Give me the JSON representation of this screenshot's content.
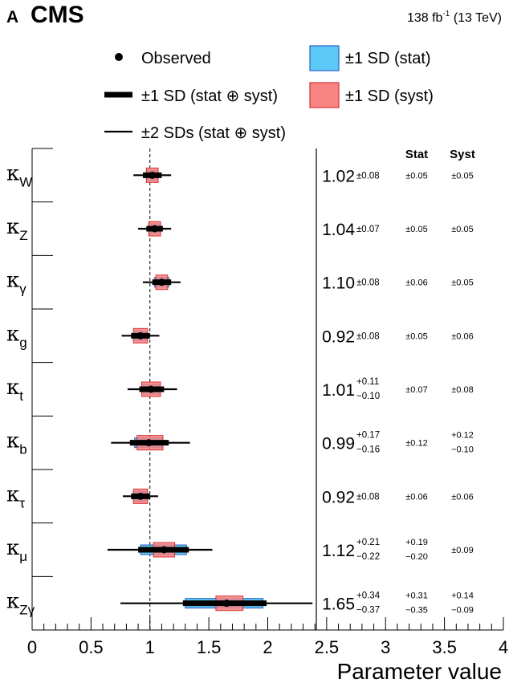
{
  "header": {
    "panel_letter": "A",
    "experiment": "CMS",
    "lumi": "138 fb",
    "lumi_exp": "-1",
    "energy": "(13 TeV)"
  },
  "legend": {
    "observed": "Observed",
    "one_sd_total": "±1 SD (stat ⊕ syst)",
    "two_sd_total": "±2 SDs (stat ⊕ syst)",
    "one_sd_stat": "±1 SD (stat)",
    "one_sd_syst": "±1 SD (syst)"
  },
  "columns": {
    "stat": "Stat",
    "syst": "Syst"
  },
  "colors": {
    "stat_fill": "#5bc8f5",
    "stat_edge": "#2a60c8",
    "syst_fill": "#f78383",
    "syst_edge": "#d83030",
    "marker": "#000000"
  },
  "chart_data": {
    "type": "scatter",
    "xlabel": "Parameter value",
    "xlim": [
      0,
      4
    ],
    "xticks": [
      "0",
      "0.5",
      "1",
      "1.5",
      "2",
      "2.5",
      "3",
      "3.5",
      "4"
    ],
    "reference_line": 1,
    "parameters": [
      {
        "sym": "κ",
        "sub": "W",
        "value": 1.02,
        "value_text": "1.02",
        "tot_single": "±0.08",
        "tot_up": "",
        "tot_dn": "",
        "stat_single": "±0.05",
        "stat_up": "",
        "stat_dn": "",
        "syst_single": "±0.05",
        "syst_up": "",
        "syst_dn": "",
        "tot1": [
          0.08,
          0.08
        ],
        "tot2": [
          0.16,
          0.16
        ],
        "stat": [
          0.05,
          0.05
        ],
        "syst": [
          0.05,
          0.05
        ]
      },
      {
        "sym": "κ",
        "sub": "Z",
        "value": 1.04,
        "value_text": "1.04",
        "tot_single": "±0.07",
        "tot_up": "",
        "tot_dn": "",
        "stat_single": "±0.05",
        "stat_up": "",
        "stat_dn": "",
        "syst_single": "±0.05",
        "syst_up": "",
        "syst_dn": "",
        "tot1": [
          0.07,
          0.07
        ],
        "tot2": [
          0.14,
          0.14
        ],
        "stat": [
          0.05,
          0.05
        ],
        "syst": [
          0.05,
          0.05
        ]
      },
      {
        "sym": "κ",
        "sub": "γ",
        "value": 1.1,
        "value_text": "1.10",
        "tot_single": "±0.08",
        "tot_up": "",
        "tot_dn": "",
        "stat_single": "±0.06",
        "stat_up": "",
        "stat_dn": "",
        "syst_single": "±0.05",
        "syst_up": "",
        "syst_dn": "",
        "tot1": [
          0.08,
          0.08
        ],
        "tot2": [
          0.16,
          0.16
        ],
        "stat": [
          0.06,
          0.06
        ],
        "syst": [
          0.05,
          0.05
        ]
      },
      {
        "sym": "κ",
        "sub": "g",
        "value": 0.92,
        "value_text": "0.92",
        "tot_single": "±0.08",
        "tot_up": "",
        "tot_dn": "",
        "stat_single": "±0.05",
        "stat_up": "",
        "stat_dn": "",
        "syst_single": "±0.06",
        "syst_up": "",
        "syst_dn": "",
        "tot1": [
          0.08,
          0.08
        ],
        "tot2": [
          0.16,
          0.16
        ],
        "stat": [
          0.05,
          0.05
        ],
        "syst": [
          0.06,
          0.06
        ]
      },
      {
        "sym": "κ",
        "sub": "t",
        "value": 1.01,
        "value_text": "1.01",
        "tot_single": "",
        "tot_up": "+0.11",
        "tot_dn": "−0.10",
        "stat_single": "±0.07",
        "stat_up": "",
        "stat_dn": "",
        "syst_single": "±0.08",
        "syst_up": "",
        "syst_dn": "",
        "tot1": [
          0.1,
          0.11
        ],
        "tot2": [
          0.2,
          0.22
        ],
        "stat": [
          0.07,
          0.07
        ],
        "syst": [
          0.08,
          0.08
        ]
      },
      {
        "sym": "κ",
        "sub": "b",
        "value": 0.99,
        "value_text": "0.99",
        "tot_single": "",
        "tot_up": "+0.17",
        "tot_dn": "−0.16",
        "stat_single": "±0.12",
        "stat_up": "",
        "stat_dn": "",
        "syst_single": "",
        "syst_up": "+0.12",
        "syst_dn": "−0.10",
        "tot1": [
          0.16,
          0.17
        ],
        "tot2": [
          0.32,
          0.35
        ],
        "stat": [
          0.12,
          0.12
        ],
        "syst": [
          0.1,
          0.12
        ]
      },
      {
        "sym": "κ",
        "sub": "τ",
        "value": 0.92,
        "value_text": "0.92",
        "tot_single": "±0.08",
        "tot_up": "",
        "tot_dn": "",
        "stat_single": "±0.06",
        "stat_up": "",
        "stat_dn": "",
        "syst_single": "±0.06",
        "syst_up": "",
        "syst_dn": "",
        "tot1": [
          0.08,
          0.08
        ],
        "tot2": [
          0.15,
          0.15
        ],
        "stat": [
          0.06,
          0.06
        ],
        "syst": [
          0.06,
          0.06
        ]
      },
      {
        "sym": "κ",
        "sub": "μ",
        "value": 1.12,
        "value_text": "1.12",
        "tot_single": "",
        "tot_up": "+0.21",
        "tot_dn": "−0.22",
        "stat_single": "",
        "stat_up": "+0.19",
        "stat_dn": "−0.20",
        "syst_single": "±0.09",
        "syst_up": "",
        "syst_dn": "",
        "tot1": [
          0.22,
          0.21
        ],
        "tot2": [
          0.48,
          0.41
        ],
        "stat": [
          0.2,
          0.19
        ],
        "syst": [
          0.09,
          0.09
        ]
      },
      {
        "sym": "κ",
        "sub": "Zγ",
        "value": 1.65,
        "value_text": "1.65",
        "tot_single": "",
        "tot_up": "+0.34",
        "tot_dn": "−0.37",
        "stat_single": "",
        "stat_up": "+0.31",
        "stat_dn": "−0.35",
        "syst_single": "",
        "syst_up": "+0.14",
        "syst_dn": "−0.09",
        "tot1": [
          0.37,
          0.34
        ],
        "tot2": [
          0.9,
          0.73
        ],
        "stat": [
          0.35,
          0.31
        ],
        "syst": [
          0.09,
          0.14
        ]
      }
    ]
  }
}
